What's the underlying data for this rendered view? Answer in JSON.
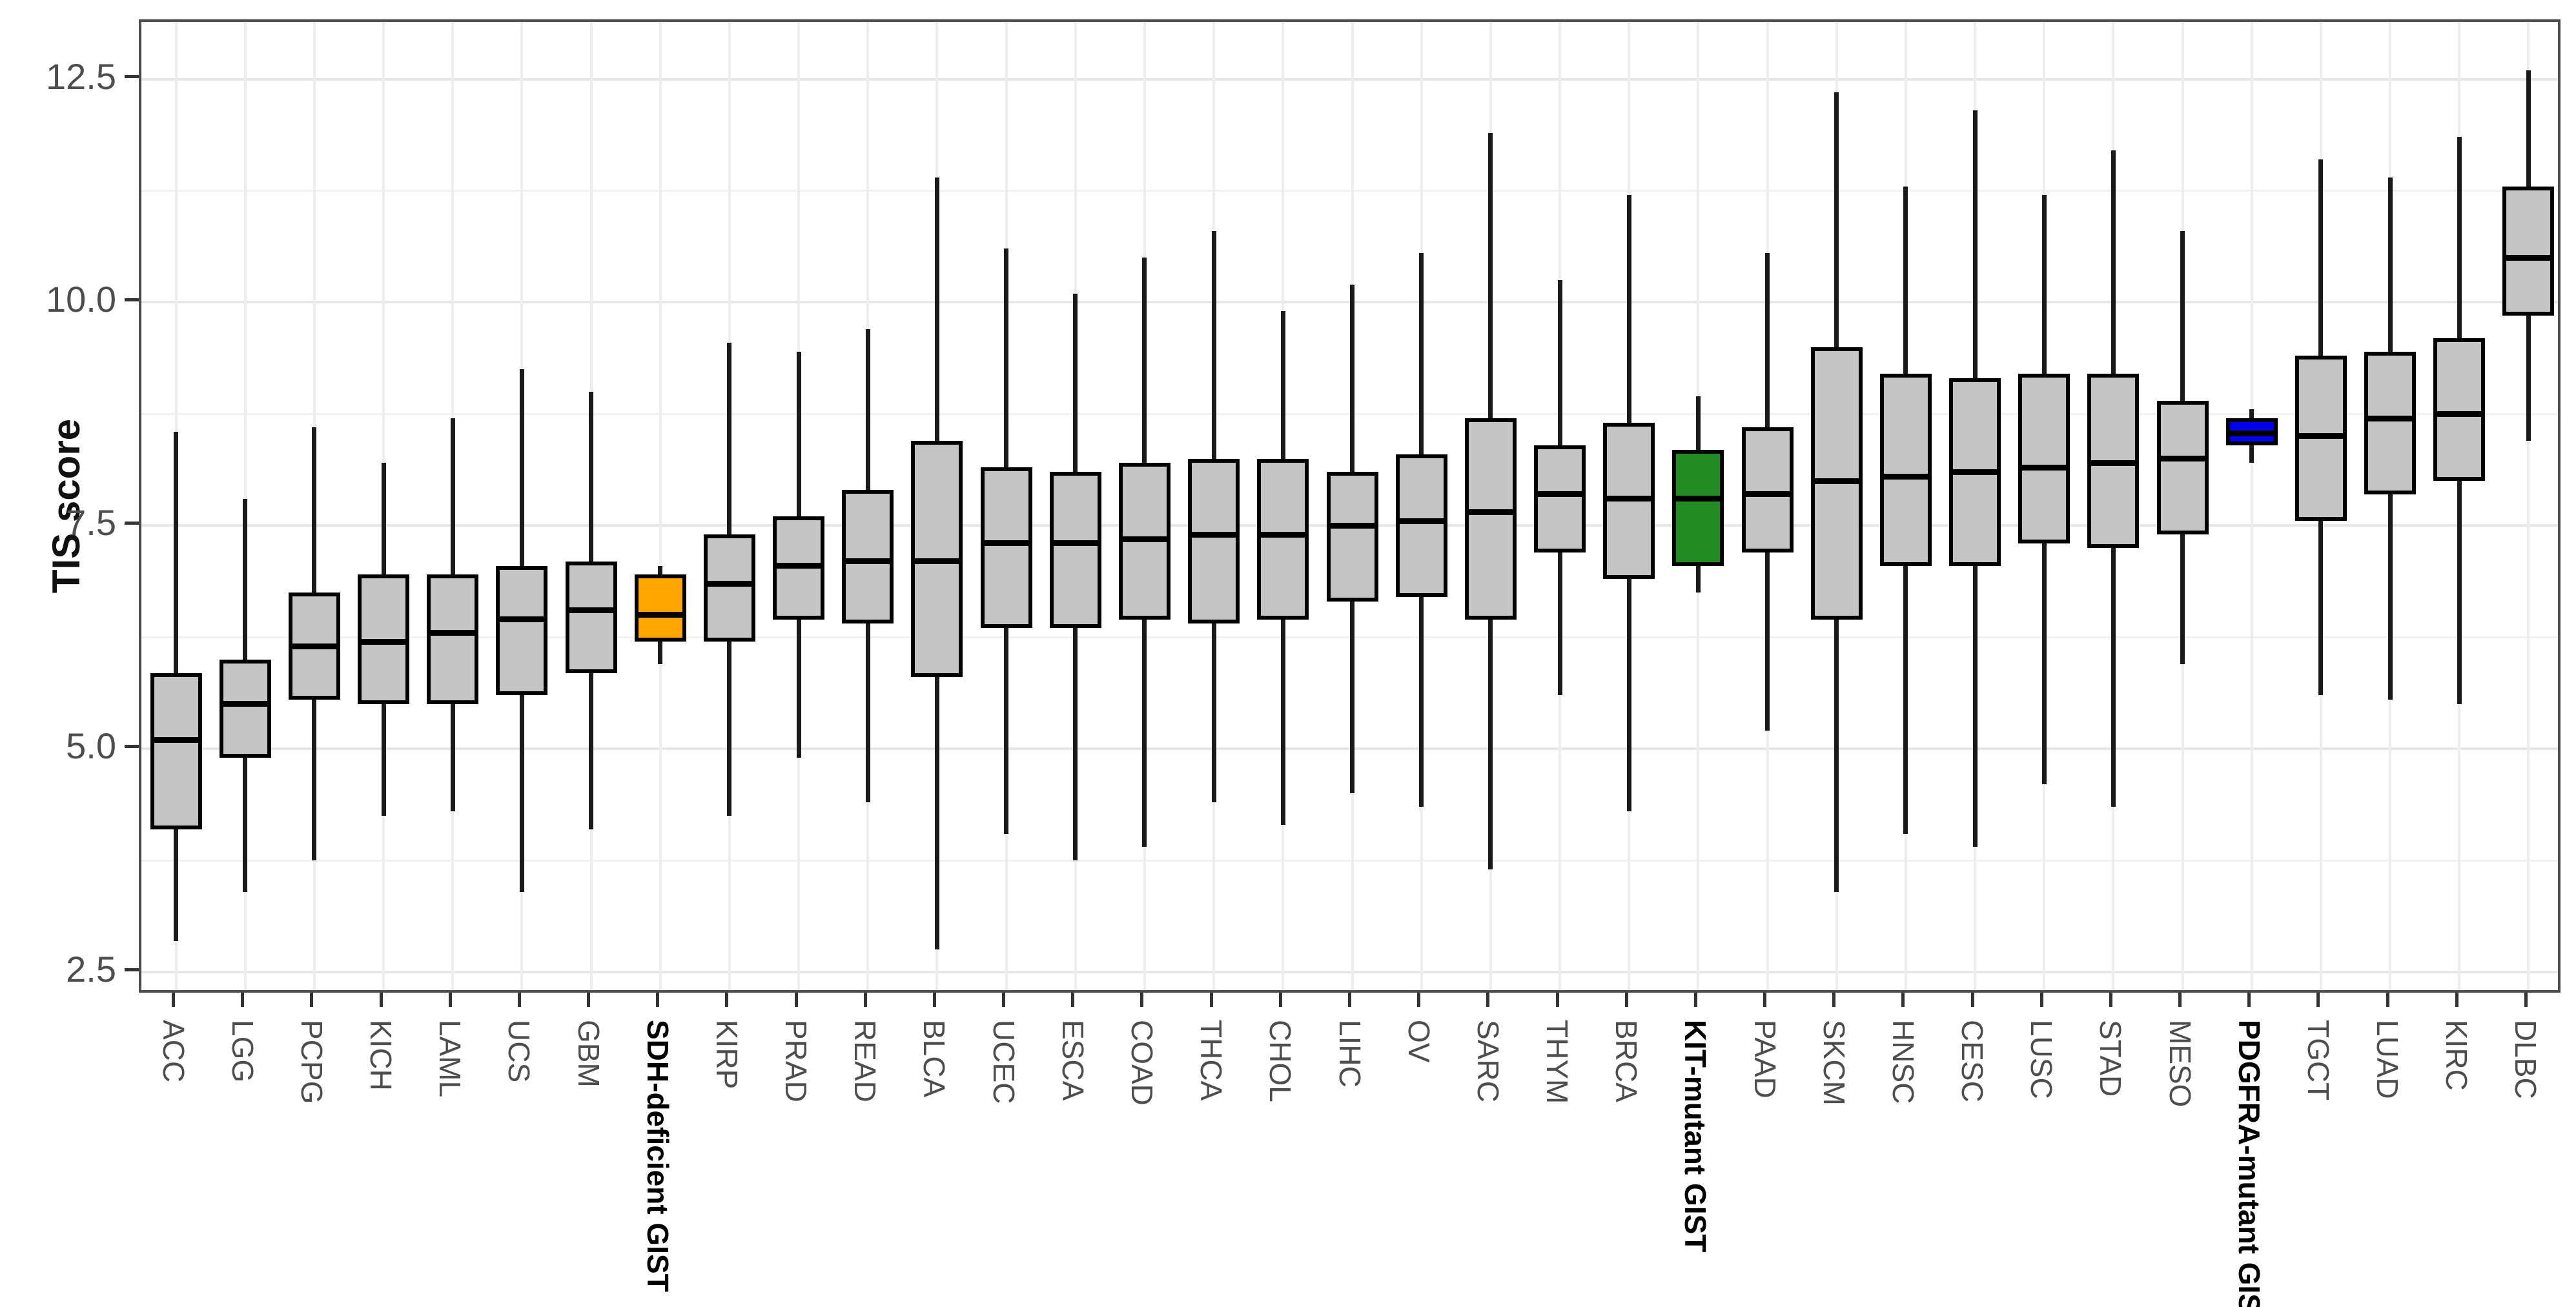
{
  "chart_data": {
    "type": "boxplot",
    "title": "",
    "xlabel": "",
    "ylabel": "TIS score",
    "grid": true,
    "legend": "none",
    "y_axis": {
      "ylim": [
        2.24,
        13.14
      ],
      "major_ticks": [
        2.5,
        5.0,
        7.5,
        10.0,
        12.5
      ],
      "tick_labels": [
        "2.5",
        "5.0",
        "7.5",
        "10.0",
        "12.5"
      ],
      "minor_gridlines": [
        3.75,
        6.25,
        8.75,
        11.25
      ]
    },
    "colors": {
      "default_box_fill": "#c4c4c4",
      "sdh_deficient_gist_fill": "#ffa500",
      "kit_mutant_gist_fill": "#228b22",
      "pdgfra_mutant_gist_fill": "#0000ee",
      "box_border": "#000000",
      "median_line": "#000000",
      "axis_text": "#4d4d4d",
      "highlighted_label_text": "#000000",
      "panel_border": "#4d4d4d",
      "grid_major": "#e7e7e7",
      "grid_minor": "#f2f2f2"
    },
    "categories": [
      "ACC",
      "LGG",
      "PCPG",
      "KICH",
      "LAML",
      "UCS",
      "GBM",
      "SDH-deficient GIST",
      "KIRP",
      "PRAD",
      "READ",
      "BLCA",
      "UCEC",
      "ESCA",
      "COAD",
      "THCA",
      "CHOL",
      "LIHC",
      "OV",
      "SARC",
      "THYM",
      "BRCA",
      "KIT-mutant GIST",
      "PAAD",
      "SKCM",
      "HNSC",
      "CESC",
      "LUSC",
      "STAD",
      "MESO",
      "PDGFRA-mutant GIST",
      "TGCT",
      "LUAD",
      "KIRC",
      "DLBC"
    ],
    "boxes": [
      {
        "label": "ACC",
        "bold": false,
        "fill": "#c4c4c4",
        "low": 2.85,
        "q1": 4.1,
        "median": 5.1,
        "q3": 5.85,
        "high": 8.55
      },
      {
        "label": "LGG",
        "bold": false,
        "fill": "#c4c4c4",
        "low": 3.4,
        "q1": 4.9,
        "median": 5.5,
        "q3": 6.0,
        "high": 7.8
      },
      {
        "label": "PCPG",
        "bold": false,
        "fill": "#c4c4c4",
        "low": 3.75,
        "q1": 5.55,
        "median": 6.15,
        "q3": 6.75,
        "high": 8.6
      },
      {
        "label": "KICH",
        "bold": false,
        "fill": "#c4c4c4",
        "low": 4.25,
        "q1": 5.5,
        "median": 6.2,
        "q3": 6.95,
        "high": 8.2
      },
      {
        "label": "LAML",
        "bold": false,
        "fill": "#c4c4c4",
        "low": 4.3,
        "q1": 5.5,
        "median": 6.3,
        "q3": 6.95,
        "high": 8.7
      },
      {
        "label": "UCS",
        "bold": false,
        "fill": "#c4c4c4",
        "low": 3.4,
        "q1": 5.6,
        "median": 6.45,
        "q3": 7.05,
        "high": 9.25
      },
      {
        "label": "GBM",
        "bold": false,
        "fill": "#c4c4c4",
        "low": 4.1,
        "q1": 5.85,
        "median": 6.55,
        "q3": 7.1,
        "high": 9.0
      },
      {
        "label": "SDH-deficient GIST",
        "bold": true,
        "fill": "#ffa500",
        "low": 5.95,
        "q1": 6.2,
        "median": 6.5,
        "q3": 6.95,
        "high": 7.05
      },
      {
        "label": "KIRP",
        "bold": false,
        "fill": "#c4c4c4",
        "low": 4.25,
        "q1": 6.2,
        "median": 6.85,
        "q3": 7.4,
        "high": 9.55
      },
      {
        "label": "PRAD",
        "bold": false,
        "fill": "#c4c4c4",
        "low": 4.9,
        "q1": 6.45,
        "median": 7.05,
        "q3": 7.6,
        "high": 9.45
      },
      {
        "label": "READ",
        "bold": false,
        "fill": "#c4c4c4",
        "low": 4.4,
        "q1": 6.4,
        "median": 7.1,
        "q3": 7.9,
        "high": 9.7
      },
      {
        "label": "BLCA",
        "bold": false,
        "fill": "#c4c4c4",
        "low": 2.75,
        "q1": 5.8,
        "median": 7.1,
        "q3": 8.45,
        "high": 11.4
      },
      {
        "label": "UCEC",
        "bold": false,
        "fill": "#c4c4c4",
        "low": 4.05,
        "q1": 6.35,
        "median": 7.3,
        "q3": 8.15,
        "high": 10.6
      },
      {
        "label": "ESCA",
        "bold": false,
        "fill": "#c4c4c4",
        "low": 3.75,
        "q1": 6.35,
        "median": 7.3,
        "q3": 8.1,
        "high": 10.1
      },
      {
        "label": "COAD",
        "bold": false,
        "fill": "#c4c4c4",
        "low": 3.9,
        "q1": 6.45,
        "median": 7.35,
        "q3": 8.2,
        "high": 10.5
      },
      {
        "label": "THCA",
        "bold": false,
        "fill": "#c4c4c4",
        "low": 4.4,
        "q1": 6.4,
        "median": 7.4,
        "q3": 8.25,
        "high": 10.8
      },
      {
        "label": "CHOL",
        "bold": false,
        "fill": "#c4c4c4",
        "low": 4.15,
        "q1": 6.45,
        "median": 7.4,
        "q3": 8.25,
        "high": 9.9
      },
      {
        "label": "LIHC",
        "bold": false,
        "fill": "#c4c4c4",
        "low": 4.5,
        "q1": 6.65,
        "median": 7.5,
        "q3": 8.1,
        "high": 10.2
      },
      {
        "label": "OV",
        "bold": false,
        "fill": "#c4c4c4",
        "low": 4.35,
        "q1": 6.7,
        "median": 7.55,
        "q3": 8.3,
        "high": 10.55
      },
      {
        "label": "SARC",
        "bold": false,
        "fill": "#c4c4c4",
        "low": 3.65,
        "q1": 6.45,
        "median": 7.65,
        "q3": 8.7,
        "high": 11.9
      },
      {
        "label": "THYM",
        "bold": false,
        "fill": "#c4c4c4",
        "low": 5.6,
        "q1": 7.2,
        "median": 7.85,
        "q3": 8.4,
        "high": 10.25
      },
      {
        "label": "BRCA",
        "bold": false,
        "fill": "#c4c4c4",
        "low": 4.3,
        "q1": 6.9,
        "median": 7.8,
        "q3": 8.65,
        "high": 11.2
      },
      {
        "label": "KIT-mutant GIST",
        "bold": true,
        "fill": "#228b22",
        "low": 6.75,
        "q1": 7.05,
        "median": 7.8,
        "q3": 8.35,
        "high": 8.95
      },
      {
        "label": "PAAD",
        "bold": false,
        "fill": "#c4c4c4",
        "low": 5.2,
        "q1": 7.2,
        "median": 7.85,
        "q3": 8.6,
        "high": 10.55
      },
      {
        "label": "SKCM",
        "bold": false,
        "fill": "#c4c4c4",
        "low": 3.4,
        "q1": 6.45,
        "median": 8.0,
        "q3": 9.5,
        "high": 12.35
      },
      {
        "label": "HNSC",
        "bold": false,
        "fill": "#c4c4c4",
        "low": 4.05,
        "q1": 7.05,
        "median": 8.05,
        "q3": 9.2,
        "high": 11.3
      },
      {
        "label": "CESC",
        "bold": false,
        "fill": "#c4c4c4",
        "low": 3.9,
        "q1": 7.05,
        "median": 8.1,
        "q3": 9.15,
        "high": 12.15
      },
      {
        "label": "LUSC",
        "bold": false,
        "fill": "#c4c4c4",
        "low": 4.6,
        "q1": 7.3,
        "median": 8.15,
        "q3": 9.2,
        "high": 11.2
      },
      {
        "label": "STAD",
        "bold": false,
        "fill": "#c4c4c4",
        "low": 4.35,
        "q1": 7.25,
        "median": 8.2,
        "q3": 9.2,
        "high": 11.7
      },
      {
        "label": "MESO",
        "bold": false,
        "fill": "#c4c4c4",
        "low": 5.95,
        "q1": 7.4,
        "median": 8.25,
        "q3": 8.9,
        "high": 10.8
      },
      {
        "label": "PDGFRA-mutant GIST",
        "bold": true,
        "fill": "#0000ee",
        "low": 8.2,
        "q1": 8.4,
        "median": 8.53,
        "q3": 8.7,
        "high": 8.8
      },
      {
        "label": "TGCT",
        "bold": false,
        "fill": "#c4c4c4",
        "low": 5.6,
        "q1": 7.55,
        "median": 8.5,
        "q3": 9.4,
        "high": 11.6
      },
      {
        "label": "LUAD",
        "bold": false,
        "fill": "#c4c4c4",
        "low": 5.55,
        "q1": 7.85,
        "median": 8.7,
        "q3": 9.45,
        "high": 11.4
      },
      {
        "label": "KIRC",
        "bold": false,
        "fill": "#c4c4c4",
        "low": 5.5,
        "q1": 8.0,
        "median": 8.75,
        "q3": 9.6,
        "high": 11.85
      },
      {
        "label": "DLBC",
        "bold": false,
        "fill": "#c4c4c4",
        "low": 8.45,
        "q1": 9.85,
        "median": 10.5,
        "q3": 11.3,
        "high": 12.6
      }
    ]
  }
}
